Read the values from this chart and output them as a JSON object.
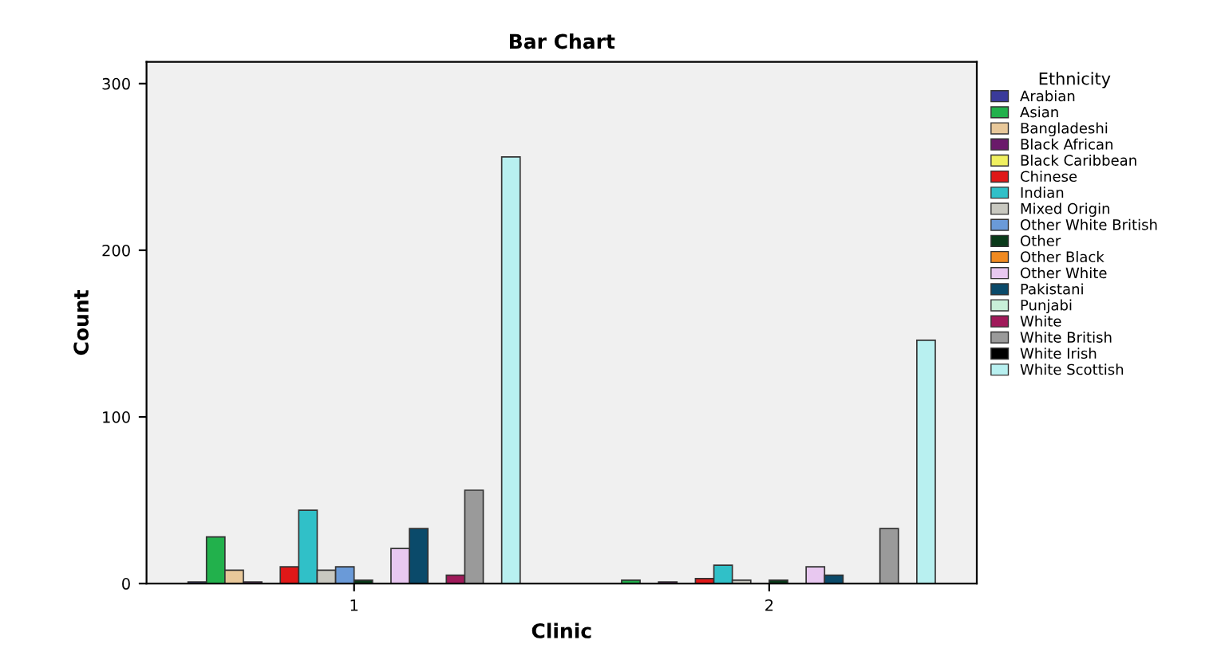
{
  "chart_data": {
    "type": "bar",
    "title": "Bar Chart",
    "xlabel": "Clinic",
    "ylabel": "Count",
    "legend_title": "Ethnicity",
    "legend": "right",
    "categories": [
      "1",
      "2"
    ],
    "ylim": [
      0,
      313
    ],
    "yticks": [
      0,
      100,
      200,
      300
    ],
    "grid": false,
    "series": [
      {
        "name": "Arabian",
        "color": "#3a3a9a",
        "values": [
          1,
          0
        ]
      },
      {
        "name": "Asian",
        "color": "#22b14c",
        "values": [
          28,
          2
        ]
      },
      {
        "name": "Bangladeshi",
        "color": "#e8c89a",
        "values": [
          8,
          null
        ]
      },
      {
        "name": "Black African",
        "color": "#6a1a6a",
        "values": [
          1,
          1
        ]
      },
      {
        "name": "Black Caribbean",
        "color": "#f0f060",
        "values": [
          null,
          0
        ]
      },
      {
        "name": "Chinese",
        "color": "#e01818",
        "values": [
          10,
          3
        ]
      },
      {
        "name": "Indian",
        "color": "#30c0c8",
        "values": [
          44,
          11
        ]
      },
      {
        "name": "Mixed Origin",
        "color": "#c8c8c0",
        "values": [
          8,
          2
        ]
      },
      {
        "name": "Other White British",
        "color": "#6a9ad8",
        "values": [
          10,
          0
        ]
      },
      {
        "name": "Other",
        "color": "#0a3a1a",
        "values": [
          2,
          2
        ]
      },
      {
        "name": "Other Black",
        "color": "#f08a20",
        "values": [
          null,
          0
        ]
      },
      {
        "name": "Other White",
        "color": "#e8c8f0",
        "values": [
          21,
          10
        ]
      },
      {
        "name": "Pakistani",
        "color": "#0a4a6a",
        "values": [
          33,
          5
        ]
      },
      {
        "name": "Punjabi",
        "color": "#c8f0d8",
        "values": [
          0,
          0
        ]
      },
      {
        "name": "White",
        "color": "#a01a5a",
        "values": [
          5,
          0
        ]
      },
      {
        "name": "White British",
        "color": "#9a9a9a",
        "values": [
          56,
          33
        ]
      },
      {
        "name": "White Irish",
        "color": "#000000",
        "values": [
          0,
          0
        ]
      },
      {
        "name": "White Scottish",
        "color": "#b8f0f0",
        "values": [
          256,
          146
        ]
      }
    ]
  }
}
